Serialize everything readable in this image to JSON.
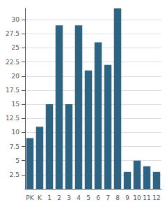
{
  "chart_data": {
    "type": "bar",
    "categories": [
      "PK",
      "K",
      "1",
      "2",
      "3",
      "4",
      "5",
      "6",
      "7",
      "8",
      "9",
      "10",
      "11",
      "12"
    ],
    "values": [
      9,
      11,
      15,
      29,
      15,
      29,
      21,
      26,
      22,
      32,
      3,
      5,
      4,
      3
    ],
    "color": "#2e6482",
    "ylim": [
      0,
      32
    ],
    "yticks": [
      2.5,
      5,
      7.5,
      10,
      12.5,
      15,
      17.5,
      20,
      22.5,
      25,
      27.5,
      30
    ],
    "grid": true
  }
}
